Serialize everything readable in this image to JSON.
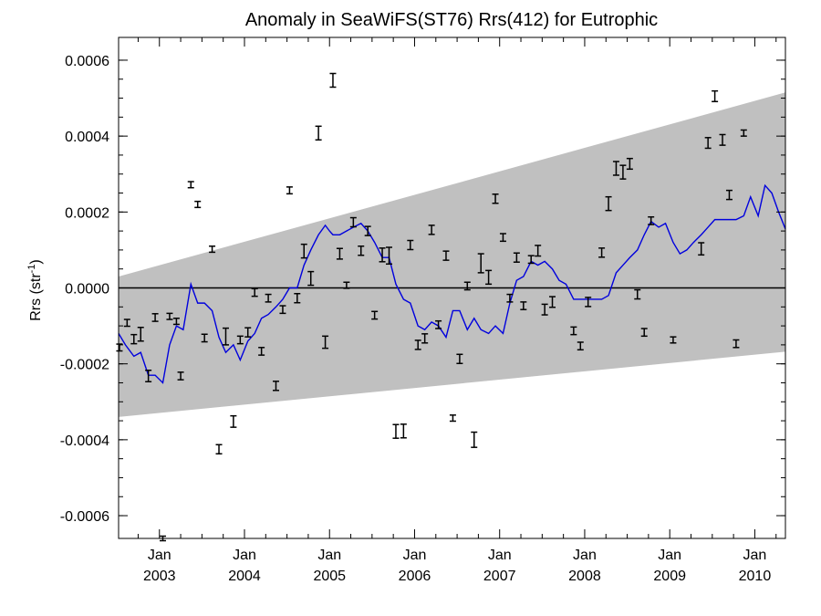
{
  "chart_data": {
    "type": "line",
    "title": "Anomaly in SeaWiFS(ST76) Rrs(412) for Eutrophic",
    "ylabel": "Rrs (str",
    "ylabel_sup": "-1",
    "ylabel_close": ")",
    "xlim": [
      2002.52,
      2010.36
    ],
    "ylim": [
      -0.00066,
      0.00066
    ],
    "y_ticks": [
      {
        "value": -0.0006,
        "label": "-0.0006"
      },
      {
        "value": -0.0004,
        "label": "-0.0004"
      },
      {
        "value": -0.0002,
        "label": "-0.0002"
      },
      {
        "value": 0.0,
        "label": "0.0000"
      },
      {
        "value": 0.0002,
        "label": "0.0002"
      },
      {
        "value": 0.0004,
        "label": "0.0004"
      },
      {
        "value": 0.0006,
        "label": "0.0006"
      }
    ],
    "x_ticks": [
      {
        "value": 2003.0,
        "month": "Jan",
        "year": "2003"
      },
      {
        "value": 2004.0,
        "month": "Jan",
        "year": "2004"
      },
      {
        "value": 2005.0,
        "month": "Jan",
        "year": "2005"
      },
      {
        "value": 2006.0,
        "month": "Jan",
        "year": "2006"
      },
      {
        "value": 2007.0,
        "month": "Jan",
        "year": "2007"
      },
      {
        "value": 2008.0,
        "month": "Jan",
        "year": "2008"
      },
      {
        "value": 2009.0,
        "month": "Jan",
        "year": "2009"
      },
      {
        "value": 2010.0,
        "month": "Jan",
        "year": "2010"
      }
    ],
    "zero_line": 0.0,
    "band": {
      "color": "#c0c0c0",
      "x": [
        2002.52,
        2010.36
      ],
      "upper": [
        3e-05,
        0.000515
      ],
      "lower": [
        -0.00034,
        -0.000168
      ]
    },
    "series": [
      {
        "color": "#0000dd",
        "x": [
          2002.52,
          2002.6,
          2002.7,
          2002.78,
          2002.87,
          2002.95,
          2003.04,
          2003.12,
          2003.2,
          2003.28,
          2003.37,
          2003.45,
          2003.53,
          2003.62,
          2003.7,
          2003.78,
          2003.87,
          2003.95,
          2004.04,
          2004.12,
          2004.2,
          2004.28,
          2004.37,
          2004.45,
          2004.53,
          2004.62,
          2004.7,
          2004.78,
          2004.87,
          2004.95,
          2005.0,
          2005.04,
          2005.12,
          2005.2,
          2005.28,
          2005.37,
          2005.45,
          2005.53,
          2005.62,
          2005.7,
          2005.78,
          2005.87,
          2005.95,
          2006.04,
          2006.12,
          2006.2,
          2006.28,
          2006.37,
          2006.45,
          2006.53,
          2006.62,
          2006.7,
          2006.78,
          2006.87,
          2006.95,
          2007.04,
          2007.12,
          2007.2,
          2007.28,
          2007.37,
          2007.45,
          2007.53,
          2007.62,
          2007.7,
          2007.78,
          2007.87,
          2007.95,
          2008.2,
          2008.28,
          2008.37,
          2008.45,
          2008.53,
          2008.62,
          2008.7,
          2008.78,
          2008.87,
          2008.95,
          2009.04,
          2009.12,
          2009.2,
          2009.28,
          2009.37,
          2009.45,
          2009.53,
          2009.62,
          2009.7,
          2009.78,
          2009.87,
          2009.95,
          2010.04,
          2010.12,
          2010.2,
          2010.28,
          2010.36
        ],
        "y": [
          -0.00012,
          -0.00015,
          -0.00018,
          -0.00017,
          -0.00023,
          -0.00023,
          -0.00025,
          -0.00015,
          -0.0001,
          -0.00011,
          1e-05,
          -4e-05,
          -4e-05,
          -6e-05,
          -0.00013,
          -0.00017,
          -0.00015,
          -0.00019,
          -0.00014,
          -0.00012,
          -8e-05,
          -7e-05,
          -5e-05,
          -3e-05,
          0.0,
          0.0,
          6e-05,
          0.0001,
          0.00014,
          0.000165,
          0.00015,
          0.00014,
          0.00014,
          0.00015,
          0.00016,
          0.00017,
          0.00015,
          0.00012,
          8e-05,
          8e-05,
          1e-05,
          -3e-05,
          -4e-05,
          -0.0001,
          -0.00011,
          -9e-05,
          -0.0001,
          -0.00013,
          -6e-05,
          -6e-05,
          -0.00011,
          -8e-05,
          -0.00011,
          -0.00012,
          -0.0001,
          -0.00012,
          -4e-05,
          2e-05,
          3e-05,
          7e-05,
          6e-05,
          7e-05,
          5e-05,
          2e-05,
          1e-05,
          -3e-05,
          -3e-05,
          -3e-05,
          -2e-05,
          4e-05,
          6e-05,
          8e-05,
          0.0001,
          0.00014,
          0.000175,
          0.00016,
          0.00017,
          0.00012,
          9e-05,
          0.0001,
          0.00012,
          0.00014,
          0.00016,
          0.00018,
          0.00018,
          0.00018,
          0.00018,
          0.00019,
          0.00024,
          0.00019,
          0.00027,
          0.00025,
          0.0002,
          0.000155
        ]
      }
    ],
    "error_bars": {
      "color": "#000000",
      "points": [
        {
          "x": 2002.53,
          "y": -0.000157,
          "e": 9e-06
        },
        {
          "x": 2002.62,
          "y": -9.2e-05,
          "e": 9e-06
        },
        {
          "x": 2002.7,
          "y": -0.000135,
          "e": 1.2e-05
        },
        {
          "x": 2002.78,
          "y": -0.000122,
          "e": 1.8e-05
        },
        {
          "x": 2002.87,
          "y": -0.000232,
          "e": 1.5e-05
        },
        {
          "x": 2002.95,
          "y": -7.8e-05,
          "e": 1e-05
        },
        {
          "x": 2003.04,
          "y": -0.00066,
          "e": 6e-06
        },
        {
          "x": 2003.12,
          "y": -7.5e-05,
          "e": 8e-06
        },
        {
          "x": 2003.2,
          "y": -8.8e-05,
          "e": 8e-06
        },
        {
          "x": 2003.25,
          "y": -0.000232,
          "e": 1e-05
        },
        {
          "x": 2003.37,
          "y": 0.000272,
          "e": 8e-06
        },
        {
          "x": 2003.45,
          "y": 0.00022,
          "e": 8e-06
        },
        {
          "x": 2003.53,
          "y": -0.000132,
          "e": 1e-05
        },
        {
          "x": 2003.62,
          "y": 0.000102,
          "e": 8e-06
        },
        {
          "x": 2003.7,
          "y": -0.000425,
          "e": 1.2e-05
        },
        {
          "x": 2003.78,
          "y": -0.000128,
          "e": 2.2e-05
        },
        {
          "x": 2003.87,
          "y": -0.000352,
          "e": 1.5e-05
        },
        {
          "x": 2003.95,
          "y": -0.000137,
          "e": 1e-05
        },
        {
          "x": 2004.04,
          "y": -0.000117,
          "e": 1.2e-05
        },
        {
          "x": 2004.12,
          "y": -1.2e-05,
          "e": 1e-05
        },
        {
          "x": 2004.2,
          "y": -0.000167,
          "e": 1e-05
        },
        {
          "x": 2004.28,
          "y": -2.7e-05,
          "e": 1e-05
        },
        {
          "x": 2004.37,
          "y": -0.000258,
          "e": 1.2e-05
        },
        {
          "x": 2004.45,
          "y": -5.7e-05,
          "e": 1e-05
        },
        {
          "x": 2004.53,
          "y": 0.000257,
          "e": 9e-06
        },
        {
          "x": 2004.62,
          "y": -2.7e-05,
          "e": 1.2e-05
        },
        {
          "x": 2004.7,
          "y": 9.7e-05,
          "e": 1.8e-05
        },
        {
          "x": 2004.78,
          "y": 2.5e-05,
          "e": 1.8e-05
        },
        {
          "x": 2004.87,
          "y": 0.000408,
          "e": 1.8e-05
        },
        {
          "x": 2004.95,
          "y": -0.000143,
          "e": 1.6e-05
        },
        {
          "x": 2005.04,
          "y": 0.000547,
          "e": 1.8e-05
        },
        {
          "x": 2005.12,
          "y": 9e-05,
          "e": 1.4e-05
        },
        {
          "x": 2005.2,
          "y": 7e-06,
          "e": 8e-06
        },
        {
          "x": 2005.28,
          "y": 0.000173,
          "e": 1.2e-05
        },
        {
          "x": 2005.37,
          "y": 9.8e-05,
          "e": 1.2e-05
        },
        {
          "x": 2005.45,
          "y": 0.00015,
          "e": 1.2e-05
        },
        {
          "x": 2005.53,
          "y": -7.2e-05,
          "e": 1e-05
        },
        {
          "x": 2005.62,
          "y": 8.7e-05,
          "e": 1.8e-05
        },
        {
          "x": 2005.7,
          "y": 8.5e-05,
          "e": 2.2e-05
        },
        {
          "x": 2005.78,
          "y": -0.000378,
          "e": 1.8e-05
        },
        {
          "x": 2005.87,
          "y": -0.000377,
          "e": 1.8e-05
        },
        {
          "x": 2005.95,
          "y": 0.000113,
          "e": 1.2e-05
        },
        {
          "x": 2006.04,
          "y": -0.00015,
          "e": 1.2e-05
        },
        {
          "x": 2006.12,
          "y": -0.000133,
          "e": 1.2e-05
        },
        {
          "x": 2006.2,
          "y": 0.000153,
          "e": 1.2e-05
        },
        {
          "x": 2006.28,
          "y": -9.7e-05,
          "e": 1e-05
        },
        {
          "x": 2006.37,
          "y": 8.5e-05,
          "e": 1.2e-05
        },
        {
          "x": 2006.45,
          "y": -0.000343,
          "e": 8e-06
        },
        {
          "x": 2006.53,
          "y": -0.000187,
          "e": 1.2e-05
        },
        {
          "x": 2006.62,
          "y": 5e-06,
          "e": 1e-05
        },
        {
          "x": 2006.7,
          "y": -0.0004,
          "e": 2e-05
        },
        {
          "x": 2006.78,
          "y": 6.5e-05,
          "e": 2.5e-05
        },
        {
          "x": 2006.87,
          "y": 2.8e-05,
          "e": 1.8e-05
        },
        {
          "x": 2006.95,
          "y": 0.000235,
          "e": 1.2e-05
        },
        {
          "x": 2007.04,
          "y": 0.000133,
          "e": 1e-05
        },
        {
          "x": 2007.12,
          "y": -2.7e-05,
          "e": 1e-05
        },
        {
          "x": 2007.2,
          "y": 8e-05,
          "e": 1.2e-05
        },
        {
          "x": 2007.28,
          "y": -4.7e-05,
          "e": 1e-05
        },
        {
          "x": 2007.37,
          "y": 7.5e-05,
          "e": 1e-05
        },
        {
          "x": 2007.45,
          "y": 9.8e-05,
          "e": 1.4e-05
        },
        {
          "x": 2007.53,
          "y": -5.7e-05,
          "e": 1.4e-05
        },
        {
          "x": 2007.62,
          "y": -3.7e-05,
          "e": 1.4e-05
        },
        {
          "x": 2007.87,
          "y": -0.000113,
          "e": 1e-05
        },
        {
          "x": 2007.95,
          "y": -0.000153,
          "e": 1e-05
        },
        {
          "x": 2008.04,
          "y": -3.7e-05,
          "e": 1.2e-05
        },
        {
          "x": 2008.2,
          "y": 9.3e-05,
          "e": 1.2e-05
        },
        {
          "x": 2008.28,
          "y": 0.000222,
          "e": 1.8e-05
        },
        {
          "x": 2008.37,
          "y": 0.000315,
          "e": 1.8e-05
        },
        {
          "x": 2008.45,
          "y": 0.000305,
          "e": 1.8e-05
        },
        {
          "x": 2008.53,
          "y": 0.000327,
          "e": 1.4e-05
        },
        {
          "x": 2008.62,
          "y": -1.7e-05,
          "e": 1.2e-05
        },
        {
          "x": 2008.7,
          "y": -0.000117,
          "e": 1e-05
        },
        {
          "x": 2008.78,
          "y": 0.000177,
          "e": 1e-05
        },
        {
          "x": 2009.04,
          "y": -0.000137,
          "e": 8e-06
        },
        {
          "x": 2009.37,
          "y": 0.000103,
          "e": 1.6e-05
        },
        {
          "x": 2009.45,
          "y": 0.000382,
          "e": 1.4e-05
        },
        {
          "x": 2009.53,
          "y": 0.000505,
          "e": 1.4e-05
        },
        {
          "x": 2009.62,
          "y": 0.00039,
          "e": 1.4e-05
        },
        {
          "x": 2009.7,
          "y": 0.000245,
          "e": 1.2e-05
        },
        {
          "x": 2009.78,
          "y": -0.000147,
          "e": 1e-05
        },
        {
          "x": 2009.87,
          "y": 0.000408,
          "e": 8e-06
        }
      ]
    },
    "grid": false,
    "legend": "none"
  }
}
